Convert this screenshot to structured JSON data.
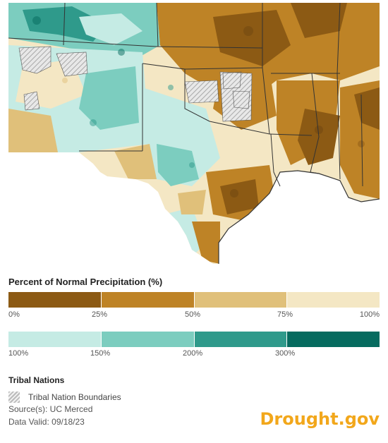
{
  "legend": {
    "title": "Percent of Normal Precipitation (%)",
    "dry_segments": [
      {
        "color": "#8c5a14",
        "range": "0-25"
      },
      {
        "color": "#be8326",
        "range": "25-50"
      },
      {
        "color": "#e0c07a",
        "range": "50-75"
      },
      {
        "color": "#f4e7c4",
        "range": "75-100"
      }
    ],
    "dry_ticks": [
      "0%",
      "25%",
      "50%",
      "75%",
      "100%"
    ],
    "wet_segments": [
      {
        "color": "#c5ebe4",
        "range": "100-150"
      },
      {
        "color": "#7ccdbf",
        "range": "150-200"
      },
      {
        "color": "#2f9a8b",
        "range": "200-300"
      },
      {
        "color": "#066b5f",
        "range": "300+"
      }
    ],
    "wet_ticks": [
      "100%",
      "150%",
      "200%",
      "300%"
    ]
  },
  "tribal": {
    "title": "Tribal Nations",
    "label": "Tribal Nation Boundaries"
  },
  "meta": {
    "source": "Source(s): UC Merced",
    "valid": "Data Valid: 09/18/23"
  },
  "brand": "Drought.gov",
  "colors": {
    "very_dry": "#8c5a14",
    "dry": "#be8326",
    "somewhat_dry": "#e0c07a",
    "near_normal_dry": "#f4e7c4",
    "near_normal_wet": "#c5ebe4",
    "wet": "#7ccdbf",
    "very_wet": "#2f9a8b",
    "extreme_wet": "#066b5f",
    "water": "#ffffff",
    "borders": "#333333",
    "brand": "#f2a71b"
  }
}
